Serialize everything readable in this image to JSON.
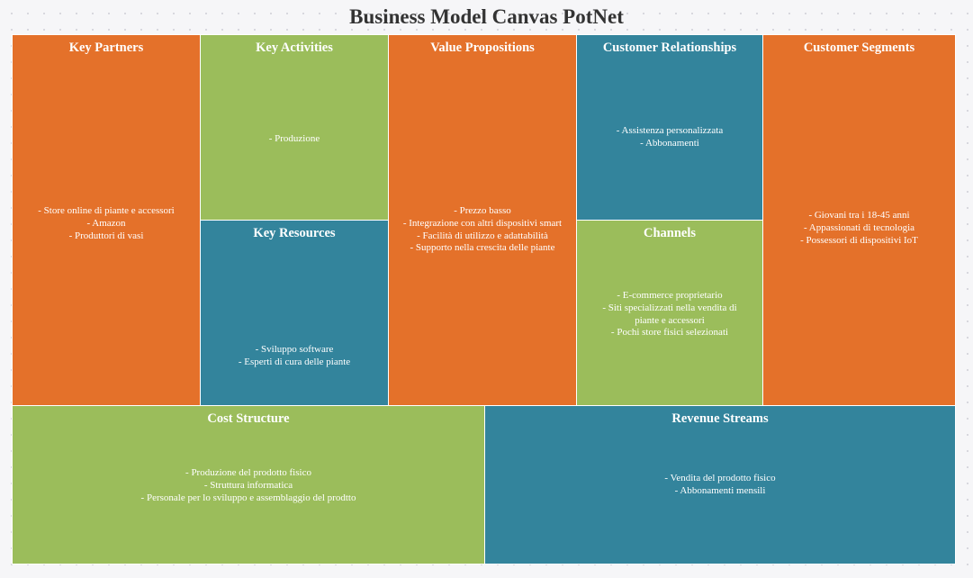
{
  "title": "Business Model Canvas PotNet",
  "colors": {
    "orange": "#e4712a",
    "green": "#9bbd5b",
    "teal": "#33849c"
  },
  "blocks": {
    "key_partners": {
      "title": "Key Partners",
      "items": [
        "- Store online di piante e accessori",
        "- Amazon",
        "- Produttori di vasi"
      ]
    },
    "key_activities": {
      "title": "Key Activities",
      "items": [
        "- Produzione"
      ]
    },
    "key_resources": {
      "title": "Key Resources",
      "items": [
        "- Sviluppo software",
        "- Esperti di cura delle piante"
      ]
    },
    "value_propositions": {
      "title": "Value Propositions",
      "items": [
        "- Prezzo basso",
        "- Integrazione con altri dispositivi smart",
        "- Facilità di utilizzo e adattabilità",
        "- Supporto nella crescita delle piante"
      ]
    },
    "customer_relationships": {
      "title": "Customer Relationships",
      "items": [
        "- Assistenza personalizzata",
        "- Abbonamenti"
      ]
    },
    "channels": {
      "title": "Channels",
      "items": [
        "- E-commerce proprietario",
        "- Siti specializzati nella vendita di piante e accessori",
        "- Pochi store fisici selezionati"
      ]
    },
    "customer_segments": {
      "title": "Customer Segments",
      "items": [
        "- Giovani tra i 18-45 anni",
        "- Appassionati di tecnologia",
        "- Possessori di dispositivi IoT"
      ]
    },
    "cost_structure": {
      "title": "Cost Structure",
      "items": [
        "- Produzione del prodotto fisico",
        "- Struttura informatica",
        "- Personale per lo sviluppo e assemblaggio del prodtto"
      ]
    },
    "revenue_streams": {
      "title": "Revenue Streams",
      "items": [
        "- Vendita del prodotto fisico",
        "- Abbonamenti mensili"
      ]
    }
  }
}
